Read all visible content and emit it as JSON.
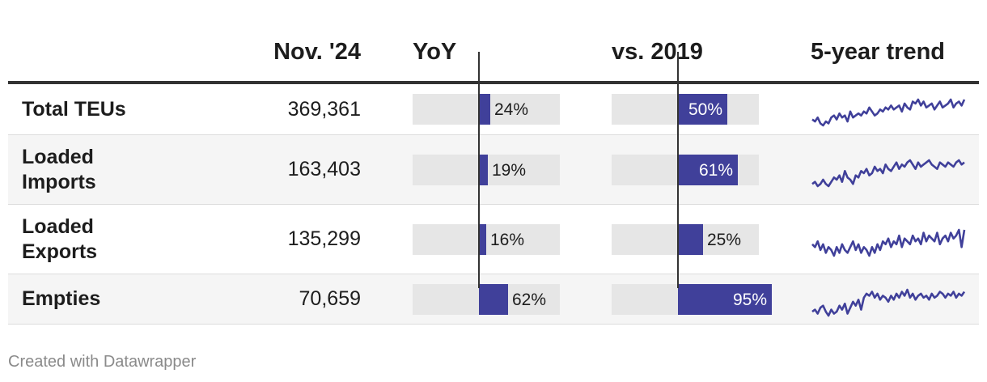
{
  "columns": {
    "label": "",
    "value": "Nov. '24",
    "yoy": "YoY",
    "vs2019": "vs. 2019",
    "trend": "5-year trend"
  },
  "bar_color": "#40409a",
  "bar_track_color": "#e6e6e6",
  "rows": [
    {
      "label": "Total TEUs",
      "value": "369,361",
      "yoy": 24,
      "yoy_label": "24%",
      "vs2019": 50,
      "vs2019_label": "50%",
      "trend": [
        3,
        2,
        4,
        1,
        0,
        2,
        1,
        4,
        5,
        3,
        6,
        4,
        5,
        2,
        7,
        4,
        5,
        6,
        5,
        7,
        6,
        9,
        7,
        5,
        6,
        8,
        7,
        9,
        8,
        10,
        8,
        9,
        10,
        7,
        11,
        9,
        8,
        12,
        11,
        13,
        10,
        12,
        9,
        10,
        11,
        8,
        10,
        12,
        9,
        10,
        11,
        13,
        9,
        11,
        12,
        10,
        13
      ]
    },
    {
      "label": "Loaded Imports",
      "value": "163,403",
      "yoy": 19,
      "yoy_label": "19%",
      "vs2019": 61,
      "vs2019_label": "61%",
      "trend": [
        2,
        3,
        1,
        2,
        4,
        2,
        1,
        3,
        5,
        4,
        6,
        3,
        8,
        5,
        4,
        2,
        6,
        5,
        8,
        7,
        9,
        6,
        7,
        10,
        8,
        9,
        7,
        11,
        9,
        8,
        10,
        12,
        9,
        11,
        10,
        12,
        13,
        11,
        9,
        12,
        10,
        11,
        12,
        13,
        11,
        10,
        9,
        12,
        11,
        10,
        12,
        11,
        10,
        12,
        13,
        11,
        12
      ]
    },
    {
      "label": "Loaded Exports",
      "value": "135,299",
      "yoy": 16,
      "yoy_label": "16%",
      "vs2019": 25,
      "vs2019_label": "25%",
      "trend": [
        9,
        8,
        10,
        7,
        9,
        6,
        8,
        7,
        5,
        8,
        6,
        9,
        7,
        6,
        8,
        10,
        7,
        9,
        6,
        8,
        7,
        5,
        8,
        6,
        9,
        7,
        10,
        9,
        11,
        8,
        10,
        9,
        12,
        8,
        11,
        10,
        9,
        12,
        10,
        11,
        9,
        13,
        10,
        12,
        11,
        10,
        13,
        9,
        11,
        12,
        10,
        13,
        11,
        12,
        14,
        8,
        14
      ]
    },
    {
      "label": "Empties",
      "value": "70,659",
      "yoy": 62,
      "yoy_label": "62%",
      "vs2019": 95,
      "vs2019_label": "95%",
      "trend": [
        3,
        4,
        2,
        5,
        6,
        3,
        1,
        4,
        2,
        3,
        6,
        4,
        7,
        2,
        5,
        8,
        6,
        9,
        4,
        10,
        12,
        11,
        13,
        10,
        12,
        9,
        11,
        10,
        8,
        11,
        9,
        12,
        10,
        13,
        11,
        14,
        10,
        12,
        9,
        11,
        12,
        10,
        11,
        9,
        12,
        10,
        11,
        13,
        12,
        10,
        12,
        11,
        13,
        10,
        12,
        11,
        13
      ]
    }
  ],
  "credit": "Created with Datawrapper"
}
